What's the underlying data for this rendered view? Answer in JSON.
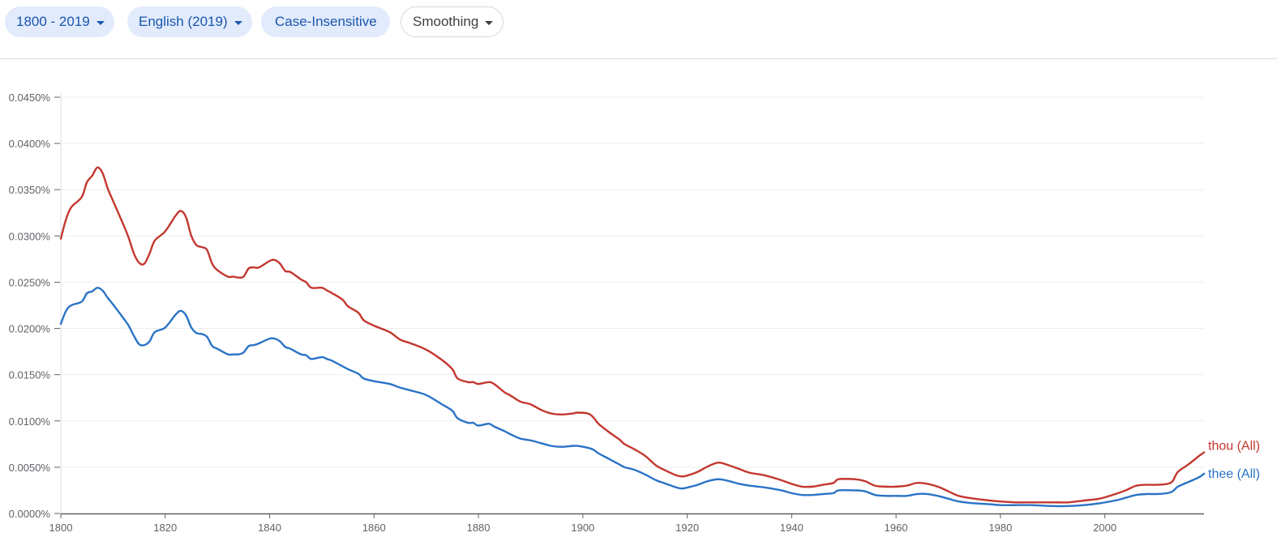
{
  "toolbar": {
    "year_range": "1800 - 2019",
    "corpus": "English (2019)",
    "case": "Case-Insensitive",
    "smoothing": "Smoothing"
  },
  "colors": {
    "thou": "#c3372f",
    "thee": "#2a73c6",
    "chip_bg": "#e2ebfc",
    "chip_text": "#1a56ad"
  },
  "chart_data": {
    "type": "line",
    "title": "",
    "xlabel": "",
    "ylabel": "",
    "xlim": [
      1800,
      2019
    ],
    "ylim": [
      0,
      0.045
    ],
    "x_ticks": [
      1800,
      1820,
      1840,
      1860,
      1880,
      1900,
      1920,
      1940,
      1960,
      1980,
      2000
    ],
    "y_ticks": [
      "0.0000%",
      "0.0050%",
      "0.0100%",
      "0.0150%",
      "0.0200%",
      "0.0250%",
      "0.0300%",
      "0.0350%",
      "0.0400%",
      "0.0450%"
    ],
    "y_values": [
      0,
      0.005,
      0.01,
      0.015,
      0.02,
      0.025,
      0.03,
      0.035,
      0.04,
      0.045
    ],
    "grid": true,
    "legend": "end-of-line labels",
    "series": [
      {
        "name": "thou (All)",
        "color": "#c3372f",
        "points": [
          [
            1800,
            0.0297
          ],
          [
            1801,
            0.0318
          ],
          [
            1802,
            0.0331
          ],
          [
            1804,
            0.0342
          ],
          [
            1805,
            0.0358
          ],
          [
            1806,
            0.0365
          ],
          [
            1807,
            0.0374
          ],
          [
            1808,
            0.0368
          ],
          [
            1809,
            0.0351
          ],
          [
            1810,
            0.0338
          ],
          [
            1812,
            0.0312
          ],
          [
            1813,
            0.0298
          ],
          [
            1814,
            0.0281
          ],
          [
            1815,
            0.0271
          ],
          [
            1816,
            0.027
          ],
          [
            1817,
            0.0281
          ],
          [
            1818,
            0.0295
          ],
          [
            1820,
            0.0305
          ],
          [
            1822,
            0.0322
          ],
          [
            1823,
            0.0327
          ],
          [
            1824,
            0.032
          ],
          [
            1825,
            0.03
          ],
          [
            1826,
            0.029
          ],
          [
            1827,
            0.0288
          ],
          [
            1828,
            0.0285
          ],
          [
            1829,
            0.027
          ],
          [
            1830,
            0.0263
          ],
          [
            1832,
            0.0256
          ],
          [
            1833,
            0.0256
          ],
          [
            1834,
            0.0255
          ],
          [
            1835,
            0.0256
          ],
          [
            1836,
            0.0265
          ],
          [
            1837,
            0.0266
          ],
          [
            1838,
            0.0266
          ],
          [
            1840,
            0.0273
          ],
          [
            1841,
            0.0274
          ],
          [
            1842,
            0.027
          ],
          [
            1843,
            0.0262
          ],
          [
            1844,
            0.0261
          ],
          [
            1846,
            0.0253
          ],
          [
            1847,
            0.025
          ],
          [
            1848,
            0.0244
          ],
          [
            1850,
            0.0244
          ],
          [
            1851,
            0.0241
          ],
          [
            1852,
            0.0238
          ],
          [
            1854,
            0.0231
          ],
          [
            1855,
            0.0224
          ],
          [
            1857,
            0.0217
          ],
          [
            1858,
            0.0209
          ],
          [
            1860,
            0.0203
          ],
          [
            1863,
            0.0196
          ],
          [
            1865,
            0.0188
          ],
          [
            1867,
            0.0184
          ],
          [
            1870,
            0.0177
          ],
          [
            1873,
            0.0166
          ],
          [
            1875,
            0.0156
          ],
          [
            1876,
            0.0146
          ],
          [
            1878,
            0.0142
          ],
          [
            1879,
            0.0142
          ],
          [
            1880,
            0.014
          ],
          [
            1882,
            0.0142
          ],
          [
            1883,
            0.014
          ],
          [
            1885,
            0.0131
          ],
          [
            1886,
            0.0128
          ],
          [
            1888,
            0.0121
          ],
          [
            1890,
            0.0118
          ],
          [
            1892,
            0.0112
          ],
          [
            1894,
            0.0108
          ],
          [
            1896,
            0.0107
          ],
          [
            1898,
            0.0108
          ],
          [
            1899,
            0.0109
          ],
          [
            1901,
            0.0108
          ],
          [
            1902,
            0.0104
          ],
          [
            1903,
            0.0097
          ],
          [
            1905,
            0.0088
          ],
          [
            1907,
            0.008
          ],
          [
            1908,
            0.0075
          ],
          [
            1910,
            0.0069
          ],
          [
            1912,
            0.0062
          ],
          [
            1914,
            0.0052
          ],
          [
            1916,
            0.0046
          ],
          [
            1918,
            0.0041
          ],
          [
            1919,
            0.004
          ],
          [
            1920,
            0.0041
          ],
          [
            1922,
            0.0045
          ],
          [
            1924,
            0.0051
          ],
          [
            1926,
            0.0055
          ],
          [
            1928,
            0.0052
          ],
          [
            1930,
            0.0048
          ],
          [
            1932,
            0.0044
          ],
          [
            1935,
            0.0041
          ],
          [
            1938,
            0.0036
          ],
          [
            1940,
            0.0032
          ],
          [
            1942,
            0.0029
          ],
          [
            1944,
            0.0029
          ],
          [
            1946,
            0.0031
          ],
          [
            1948,
            0.0033
          ],
          [
            1949,
            0.0037
          ],
          [
            1952,
            0.0037
          ],
          [
            1954,
            0.0035
          ],
          [
            1956,
            0.003
          ],
          [
            1958,
            0.0029
          ],
          [
            1960,
            0.0029
          ],
          [
            1962,
            0.003
          ],
          [
            1964,
            0.0033
          ],
          [
            1966,
            0.0032
          ],
          [
            1968,
            0.0029
          ],
          [
            1970,
            0.0024
          ],
          [
            1972,
            0.0019
          ],
          [
            1975,
            0.0016
          ],
          [
            1978,
            0.0014
          ],
          [
            1980,
            0.0013
          ],
          [
            1983,
            0.0012
          ],
          [
            1986,
            0.0012
          ],
          [
            1990,
            0.0012
          ],
          [
            1993,
            0.0012
          ],
          [
            1996,
            0.0014
          ],
          [
            1999,
            0.0016
          ],
          [
            2002,
            0.0021
          ],
          [
            2004,
            0.0025
          ],
          [
            2006,
            0.003
          ],
          [
            2008,
            0.0031
          ],
          [
            2010,
            0.0031
          ],
          [
            2012,
            0.0032
          ],
          [
            2013,
            0.0035
          ],
          [
            2014,
            0.0045
          ],
          [
            2016,
            0.0053
          ],
          [
            2018,
            0.0062
          ],
          [
            2019,
            0.0066
          ]
        ]
      },
      {
        "name": "thee (All)",
        "color": "#2a73c6",
        "points": [
          [
            1800,
            0.0205
          ],
          [
            1801,
            0.0219
          ],
          [
            1802,
            0.0225
          ],
          [
            1804,
            0.0229
          ],
          [
            1805,
            0.0238
          ],
          [
            1806,
            0.024
          ],
          [
            1807,
            0.0244
          ],
          [
            1808,
            0.0241
          ],
          [
            1809,
            0.0233
          ],
          [
            1810,
            0.0226
          ],
          [
            1812,
            0.0211
          ],
          [
            1813,
            0.0203
          ],
          [
            1814,
            0.0192
          ],
          [
            1815,
            0.0183
          ],
          [
            1816,
            0.0182
          ],
          [
            1817,
            0.0186
          ],
          [
            1818,
            0.0196
          ],
          [
            1820,
            0.0201
          ],
          [
            1822,
            0.0215
          ],
          [
            1823,
            0.0219
          ],
          [
            1824,
            0.0214
          ],
          [
            1825,
            0.0201
          ],
          [
            1826,
            0.0195
          ],
          [
            1827,
            0.0194
          ],
          [
            1828,
            0.0191
          ],
          [
            1829,
            0.0181
          ],
          [
            1830,
            0.0178
          ],
          [
            1832,
            0.0172
          ],
          [
            1833,
            0.0172
          ],
          [
            1834,
            0.0172
          ],
          [
            1835,
            0.0174
          ],
          [
            1836,
            0.0181
          ],
          [
            1837,
            0.0182
          ],
          [
            1838,
            0.0184
          ],
          [
            1840,
            0.0189
          ],
          [
            1841,
            0.0189
          ],
          [
            1842,
            0.0186
          ],
          [
            1843,
            0.018
          ],
          [
            1844,
            0.0178
          ],
          [
            1846,
            0.0172
          ],
          [
            1847,
            0.0171
          ],
          [
            1848,
            0.0167
          ],
          [
            1850,
            0.0169
          ],
          [
            1851,
            0.0167
          ],
          [
            1852,
            0.0165
          ],
          [
            1854,
            0.0159
          ],
          [
            1855,
            0.0156
          ],
          [
            1857,
            0.0151
          ],
          [
            1858,
            0.0146
          ],
          [
            1860,
            0.0143
          ],
          [
            1863,
            0.014
          ],
          [
            1865,
            0.0136
          ],
          [
            1867,
            0.0133
          ],
          [
            1870,
            0.0128
          ],
          [
            1873,
            0.0118
          ],
          [
            1875,
            0.0111
          ],
          [
            1876,
            0.0103
          ],
          [
            1878,
            0.0098
          ],
          [
            1879,
            0.0098
          ],
          [
            1880,
            0.0095
          ],
          [
            1882,
            0.0097
          ],
          [
            1883,
            0.0094
          ],
          [
            1885,
            0.0089
          ],
          [
            1886,
            0.0086
          ],
          [
            1888,
            0.0081
          ],
          [
            1890,
            0.0079
          ],
          [
            1892,
            0.0076
          ],
          [
            1894,
            0.0073
          ],
          [
            1896,
            0.0072
          ],
          [
            1898,
            0.0073
          ],
          [
            1899,
            0.0073
          ],
          [
            1901,
            0.0071
          ],
          [
            1902,
            0.0069
          ],
          [
            1903,
            0.0065
          ],
          [
            1905,
            0.0059
          ],
          [
            1907,
            0.0053
          ],
          [
            1908,
            0.005
          ],
          [
            1910,
            0.0047
          ],
          [
            1912,
            0.0042
          ],
          [
            1914,
            0.0036
          ],
          [
            1916,
            0.0032
          ],
          [
            1918,
            0.0028
          ],
          [
            1919,
            0.0027
          ],
          [
            1920,
            0.0028
          ],
          [
            1922,
            0.0031
          ],
          [
            1924,
            0.0035
          ],
          [
            1926,
            0.0037
          ],
          [
            1928,
            0.0035
          ],
          [
            1930,
            0.0032
          ],
          [
            1932,
            0.003
          ],
          [
            1935,
            0.0028
          ],
          [
            1938,
            0.0025
          ],
          [
            1940,
            0.0022
          ],
          [
            1942,
            0.002
          ],
          [
            1944,
            0.002
          ],
          [
            1946,
            0.0021
          ],
          [
            1948,
            0.0022
          ],
          [
            1949,
            0.0025
          ],
          [
            1952,
            0.0025
          ],
          [
            1954,
            0.0024
          ],
          [
            1956,
            0.002
          ],
          [
            1958,
            0.0019
          ],
          [
            1960,
            0.0019
          ],
          [
            1962,
            0.0019
          ],
          [
            1964,
            0.0021
          ],
          [
            1966,
            0.0021
          ],
          [
            1968,
            0.0019
          ],
          [
            1970,
            0.0016
          ],
          [
            1972,
            0.0013
          ],
          [
            1975,
            0.0011
          ],
          [
            1978,
            0.001
          ],
          [
            1980,
            0.0009
          ],
          [
            1983,
            0.0009
          ],
          [
            1986,
            0.0009
          ],
          [
            1990,
            0.0008
          ],
          [
            1993,
            0.0008
          ],
          [
            1996,
            0.0009
          ],
          [
            1999,
            0.0011
          ],
          [
            2002,
            0.0014
          ],
          [
            2004,
            0.0017
          ],
          [
            2006,
            0.002
          ],
          [
            2008,
            0.0021
          ],
          [
            2010,
            0.0021
          ],
          [
            2012,
            0.0022
          ],
          [
            2013,
            0.0024
          ],
          [
            2014,
            0.0029
          ],
          [
            2016,
            0.0034
          ],
          [
            2018,
            0.0039
          ],
          [
            2019,
            0.0043
          ]
        ]
      }
    ]
  }
}
